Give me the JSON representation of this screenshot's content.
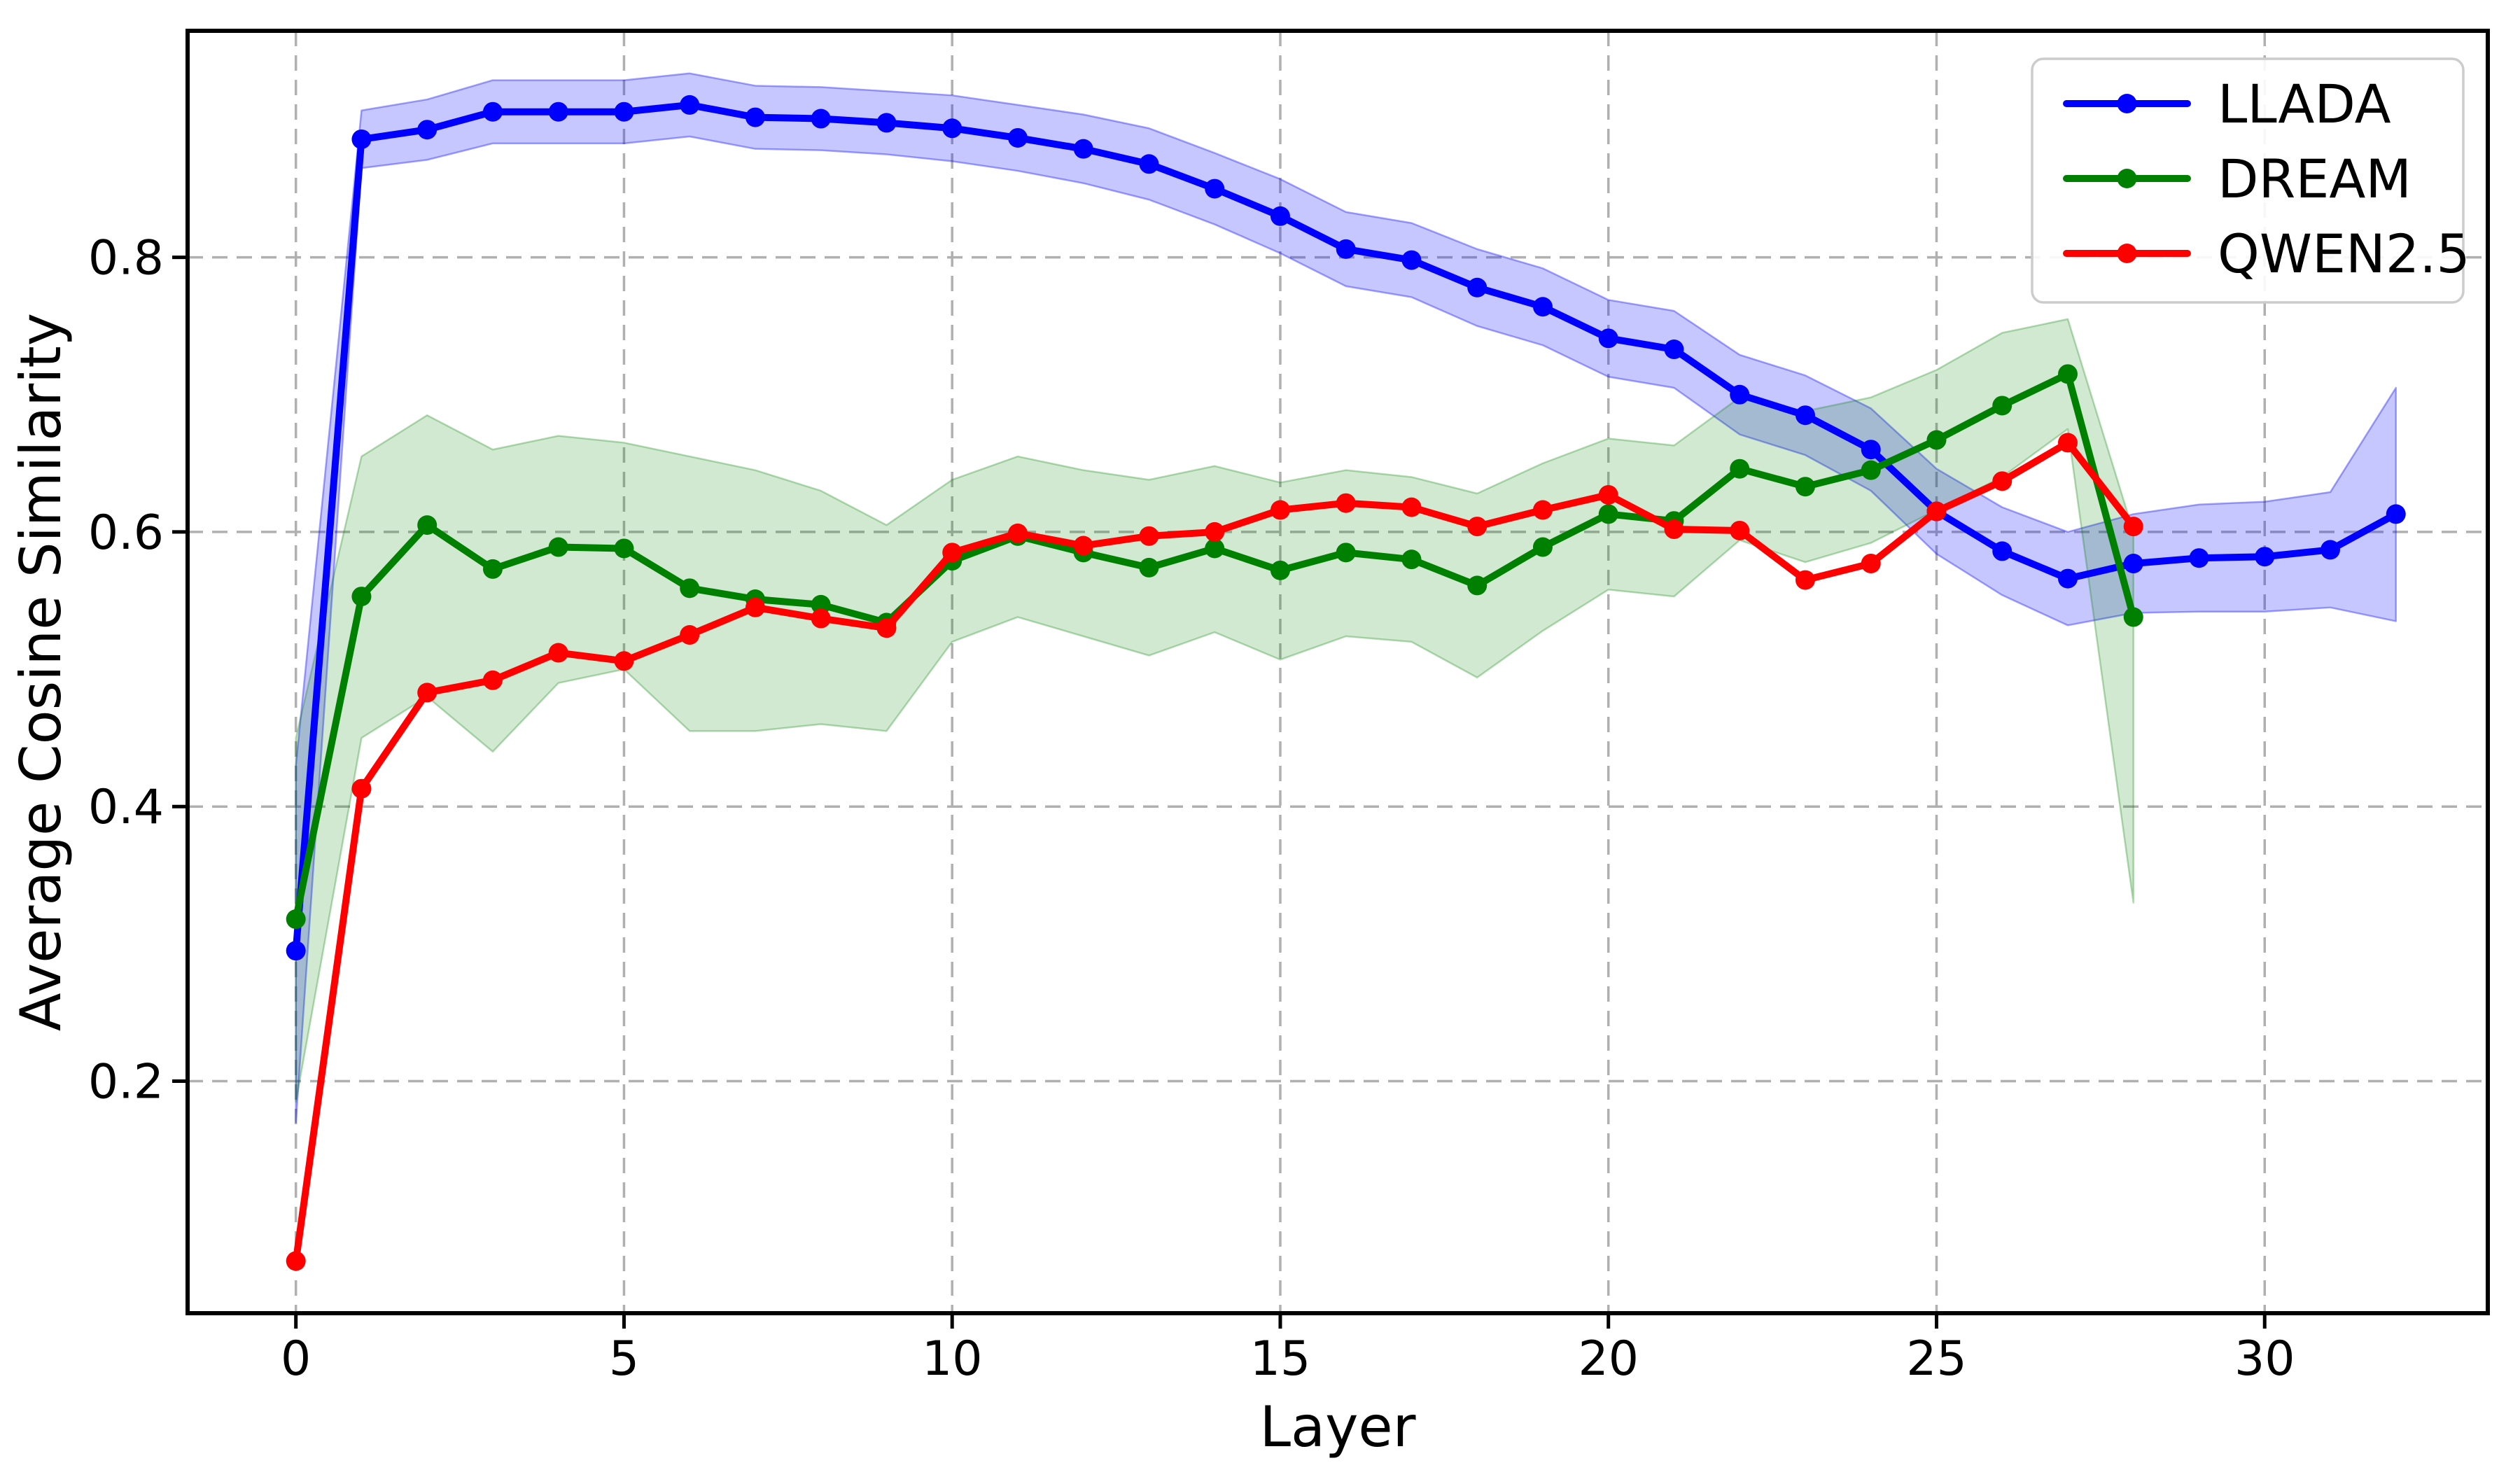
{
  "chart_data": {
    "type": "line",
    "title": "",
    "xlabel": "Layer",
    "ylabel": "Average Cosine Similarity",
    "x_ticks": [
      0,
      5,
      10,
      15,
      20,
      25,
      30
    ],
    "x_tick_labels": [
      "0",
      "5",
      "10",
      "15",
      "20",
      "25",
      "30"
    ],
    "y_ticks": [
      0.2,
      0.4,
      0.6,
      0.8
    ],
    "y_tick_labels": [
      "0.2",
      "0.4",
      "0.6",
      "0.8"
    ],
    "xlim": [
      -1.65,
      33.4
    ],
    "ylim": [
      0.031,
      0.965
    ],
    "grid": true,
    "grid_style": "dashed",
    "legend_position": "upper right",
    "colors": {
      "grid": "#b0b0b0",
      "spine": "#000000",
      "legend_border": "#cccccc",
      "legend_background": "#ffffff",
      "text": "#000000"
    },
    "series": [
      {
        "name": "LLADA",
        "color": "#0000ff",
        "band_fill_alpha": 0.22,
        "marker": "circle",
        "x": [
          0,
          1,
          2,
          3,
          4,
          5,
          6,
          7,
          8,
          9,
          10,
          11,
          12,
          13,
          14,
          15,
          16,
          17,
          18,
          19,
          20,
          21,
          22,
          23,
          24,
          25,
          26,
          27,
          28,
          29,
          30,
          31,
          32
        ],
        "y": [
          0.295,
          0.886,
          0.893,
          0.906,
          0.906,
          0.906,
          0.911,
          0.902,
          0.901,
          0.898,
          0.894,
          0.887,
          0.879,
          0.868,
          0.85,
          0.83,
          0.806,
          0.798,
          0.778,
          0.764,
          0.741,
          0.733,
          0.7,
          0.685,
          0.66,
          0.615,
          0.586,
          0.566,
          0.577,
          0.581,
          0.582,
          0.587,
          0.613
        ],
        "band_upper": [
          0.43,
          0.907,
          0.915,
          0.929,
          0.929,
          0.929,
          0.934,
          0.925,
          0.924,
          0.921,
          0.918,
          0.911,
          0.904,
          0.894,
          0.876,
          0.857,
          0.833,
          0.825,
          0.806,
          0.792,
          0.769,
          0.761,
          0.729,
          0.714,
          0.69,
          0.646,
          0.618,
          0.6,
          0.613,
          0.62,
          0.622,
          0.629,
          0.705
        ],
        "band_lower": [
          0.17,
          0.865,
          0.871,
          0.883,
          0.883,
          0.883,
          0.888,
          0.879,
          0.878,
          0.875,
          0.87,
          0.863,
          0.854,
          0.842,
          0.824,
          0.803,
          0.779,
          0.771,
          0.75,
          0.736,
          0.713,
          0.705,
          0.671,
          0.656,
          0.63,
          0.584,
          0.554,
          0.532,
          0.541,
          0.542,
          0.542,
          0.545,
          0.535
        ]
      },
      {
        "name": "DREAM",
        "color": "#008000",
        "band_fill_alpha": 0.18,
        "marker": "circle",
        "x": [
          0,
          1,
          2,
          3,
          4,
          5,
          6,
          7,
          8,
          9,
          10,
          11,
          12,
          13,
          14,
          15,
          16,
          17,
          18,
          19,
          20,
          21,
          22,
          23,
          24,
          25,
          26,
          27,
          28
        ],
        "y": [
          0.318,
          0.553,
          0.605,
          0.573,
          0.589,
          0.588,
          0.559,
          0.551,
          0.547,
          0.534,
          0.579,
          0.597,
          0.585,
          0.574,
          0.588,
          0.572,
          0.585,
          0.58,
          0.561,
          0.589,
          0.613,
          0.608,
          0.646,
          0.633,
          0.645,
          0.667,
          0.692,
          0.715,
          0.538
        ],
        "band_upper": [
          0.45,
          0.655,
          0.685,
          0.66,
          0.67,
          0.665,
          0.655,
          0.645,
          0.63,
          0.605,
          0.638,
          0.655,
          0.645,
          0.638,
          0.648,
          0.636,
          0.645,
          0.64,
          0.628,
          0.65,
          0.668,
          0.663,
          0.698,
          0.688,
          0.698,
          0.718,
          0.745,
          0.755,
          0.6
        ],
        "band_lower": [
          0.185,
          0.45,
          0.48,
          0.44,
          0.49,
          0.5,
          0.455,
          0.455,
          0.46,
          0.455,
          0.52,
          0.538,
          0.524,
          0.51,
          0.527,
          0.507,
          0.524,
          0.52,
          0.494,
          0.528,
          0.558,
          0.553,
          0.594,
          0.578,
          0.592,
          0.616,
          0.64,
          0.675,
          0.33
        ]
      },
      {
        "name": "QWEN2.5",
        "color": "#ff0000",
        "band_fill_alpha": 0,
        "marker": "circle",
        "x": [
          0,
          1,
          2,
          3,
          4,
          5,
          6,
          7,
          8,
          9,
          10,
          11,
          12,
          13,
          14,
          15,
          16,
          17,
          18,
          19,
          20,
          21,
          22,
          23,
          24,
          25,
          26,
          27,
          28
        ],
        "y": [
          0.069,
          0.413,
          0.483,
          0.492,
          0.512,
          0.506,
          0.525,
          0.545,
          0.537,
          0.53,
          0.585,
          0.599,
          0.59,
          0.597,
          0.6,
          0.616,
          0.621,
          0.618,
          0.604,
          0.616,
          0.627,
          0.602,
          0.601,
          0.565,
          0.577,
          0.615,
          0.637,
          0.665,
          0.604
        ]
      }
    ]
  }
}
